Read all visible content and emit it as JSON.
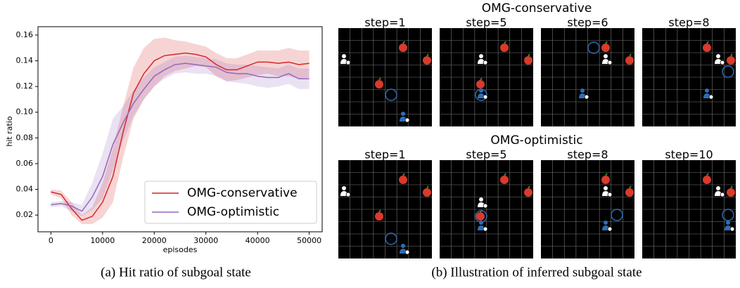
{
  "chart_data": {
    "type": "line",
    "xlabel": "episodes",
    "ylabel": "hit ratio",
    "x": [
      0,
      2000,
      4000,
      6000,
      8000,
      10000,
      12000,
      14000,
      16000,
      18000,
      20000,
      22000,
      24000,
      26000,
      28000,
      30000,
      32000,
      34000,
      36000,
      38000,
      40000,
      42000,
      44000,
      46000,
      48000,
      50000
    ],
    "series": [
      {
        "name": "OMG-conservative",
        "color": "#d62728",
        "values": [
          0.038,
          0.036,
          0.025,
          0.016,
          0.019,
          0.03,
          0.05,
          0.085,
          0.115,
          0.13,
          0.14,
          0.144,
          0.145,
          0.146,
          0.145,
          0.143,
          0.137,
          0.133,
          0.133,
          0.136,
          0.139,
          0.139,
          0.138,
          0.139,
          0.137,
          0.138
        ],
        "lower": [
          0.036,
          0.033,
          0.02,
          0.013,
          0.013,
          0.018,
          0.03,
          0.065,
          0.095,
          0.11,
          0.12,
          0.128,
          0.132,
          0.134,
          0.136,
          0.135,
          0.128,
          0.124,
          0.125,
          0.127,
          0.129,
          0.13,
          0.128,
          0.128,
          0.126,
          0.127
        ],
        "upper": [
          0.04,
          0.039,
          0.03,
          0.02,
          0.026,
          0.045,
          0.072,
          0.105,
          0.135,
          0.15,
          0.157,
          0.158,
          0.156,
          0.155,
          0.153,
          0.151,
          0.146,
          0.142,
          0.142,
          0.145,
          0.148,
          0.148,
          0.148,
          0.15,
          0.148,
          0.148
        ]
      },
      {
        "name": "OMG-optimistic",
        "color": "#9467bd",
        "values": [
          0.028,
          0.029,
          0.027,
          0.023,
          0.034,
          0.05,
          0.075,
          0.092,
          0.107,
          0.118,
          0.128,
          0.133,
          0.137,
          0.138,
          0.137,
          0.136,
          0.135,
          0.131,
          0.13,
          0.13,
          0.128,
          0.127,
          0.127,
          0.13,
          0.126,
          0.126
        ],
        "lower": [
          0.026,
          0.027,
          0.023,
          0.019,
          0.024,
          0.033,
          0.055,
          0.078,
          0.097,
          0.11,
          0.12,
          0.126,
          0.13,
          0.131,
          0.13,
          0.13,
          0.128,
          0.124,
          0.123,
          0.122,
          0.12,
          0.119,
          0.12,
          0.122,
          0.118,
          0.118
        ],
        "upper": [
          0.03,
          0.031,
          0.03,
          0.028,
          0.045,
          0.068,
          0.095,
          0.105,
          0.117,
          0.127,
          0.135,
          0.139,
          0.143,
          0.144,
          0.143,
          0.142,
          0.141,
          0.138,
          0.137,
          0.137,
          0.136,
          0.135,
          0.134,
          0.137,
          0.134,
          0.134
        ]
      }
    ],
    "xlim": [
      -2500,
      52500
    ],
    "ylim": [
      0.007,
      0.1665
    ],
    "xticks": [
      0,
      10000,
      20000,
      30000,
      40000,
      50000
    ],
    "yticks": [
      0.02,
      0.04,
      0.06,
      0.08,
      {
        "value": 0.1,
        "label": "0.10"
      },
      0.12,
      0.14,
      0.16
    ],
    "legend": "lower right"
  },
  "caption_a": "(a) Hit ratio of subgoal state",
  "caption_b": "(b) Illustration of inferred subgoal state",
  "illustration": {
    "rows": [
      {
        "title": "OMG-conservative",
        "steps": [
          "step=1",
          "step=5",
          "step=6",
          "step=8"
        ]
      },
      {
        "title": "OMG-optimistic",
        "steps": [
          "step=1",
          "step=5",
          "step=8",
          "step=10"
        ]
      }
    ]
  }
}
